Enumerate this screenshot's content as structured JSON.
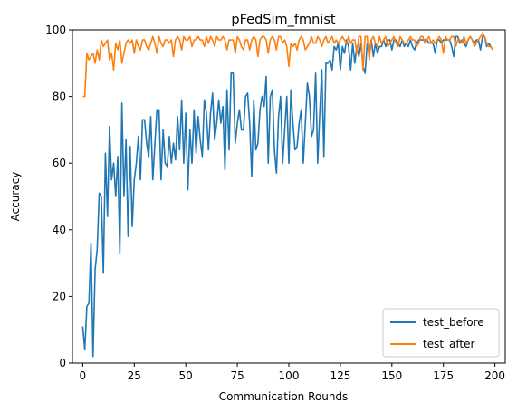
{
  "chart_data": {
    "type": "line",
    "title": "pFedSim_fmnist",
    "xlabel": "Communication Rounds",
    "ylabel": "Accuracy",
    "xlim": [
      -5,
      205
    ],
    "ylim": [
      0,
      100
    ],
    "xticks": [
      0,
      25,
      50,
      75,
      100,
      125,
      150,
      175,
      200
    ],
    "yticks": [
      0,
      20,
      40,
      60,
      80,
      100
    ],
    "grid": false,
    "legend_position": "lower-right",
    "series": [
      {
        "name": "test_before",
        "color": "#1f77b4",
        "values": [
          11,
          4,
          17,
          18,
          36,
          2,
          28,
          34,
          51,
          50,
          27,
          63,
          44,
          71,
          55,
          60,
          50,
          62,
          33,
          78,
          50,
          67,
          38,
          65,
          41,
          55,
          60,
          68,
          55,
          73,
          73,
          66,
          62,
          74,
          55,
          66,
          76,
          76,
          55,
          70,
          60,
          59,
          68,
          60,
          66,
          61,
          74,
          64,
          79,
          60,
          75,
          52,
          70,
          60,
          76,
          63,
          74,
          67,
          62,
          79,
          75,
          64,
          75,
          81,
          67,
          72,
          79,
          72,
          77,
          58,
          82,
          64,
          87,
          87,
          66,
          72,
          76,
          70,
          70,
          80,
          81,
          72,
          56,
          79,
          64,
          66,
          76,
          80,
          77,
          86,
          60,
          80,
          82,
          64,
          57,
          74,
          80,
          60,
          70,
          80,
          60,
          82,
          72,
          64,
          65,
          72,
          76,
          60,
          72,
          84,
          80,
          68,
          70,
          87,
          60,
          75,
          88,
          62,
          90,
          90,
          91,
          88,
          95,
          94,
          96,
          88,
          95,
          93,
          97,
          95,
          88,
          96,
          90,
          95,
          92,
          96,
          89,
          87,
          96,
          93,
          97,
          92,
          96,
          93,
          95,
          95,
          97,
          95,
          97,
          97,
          94,
          97,
          97,
          96,
          95,
          97,
          95,
          96,
          95,
          97,
          95,
          94,
          96,
          97,
          97,
          97,
          97,
          97,
          96,
          96,
          96,
          93,
          97,
          97,
          96,
          97,
          97,
          97,
          97,
          95,
          92,
          98,
          98,
          96,
          97,
          96,
          95,
          97,
          98,
          97,
          96,
          97,
          97,
          94,
          98,
          98,
          95,
          96,
          95,
          94
        ]
      },
      {
        "name": "test_after",
        "color": "#ff7f0e",
        "values": [
          80,
          80,
          93,
          91,
          92,
          93,
          90,
          94,
          91,
          97,
          95,
          96,
          97,
          91,
          93,
          88,
          96,
          94,
          97,
          90,
          93,
          96,
          97,
          96,
          97,
          93,
          97,
          95,
          94,
          97,
          97,
          95,
          94,
          96,
          98,
          96,
          93,
          98,
          96,
          95,
          97,
          97,
          96,
          97,
          92,
          97,
          98,
          97,
          94,
          98,
          97,
          97,
          98,
          95,
          97,
          97,
          98,
          97,
          97,
          95,
          98,
          96,
          98,
          97,
          95,
          98,
          97,
          97,
          98,
          97,
          94,
          97,
          97,
          97,
          93,
          98,
          97,
          95,
          94,
          97,
          97,
          94,
          97,
          98,
          97,
          92,
          97,
          98,
          98,
          97,
          93,
          97,
          98,
          97,
          94,
          98,
          98,
          96,
          97,
          95,
          89,
          96,
          95,
          96,
          94,
          97,
          98,
          97,
          94,
          95,
          96,
          98,
          96,
          96,
          98,
          97,
          95,
          97,
          98,
          96,
          97,
          98,
          96,
          97,
          96,
          97,
          98,
          97,
          96,
          98,
          96,
          97,
          97,
          93,
          98,
          98,
          88,
          98,
          98,
          91,
          97,
          98,
          96,
          95,
          98,
          96,
          97,
          98,
          95,
          96,
          97,
          98,
          96,
          95,
          98,
          97,
          96,
          96,
          97,
          98,
          97,
          97,
          95,
          96,
          98,
          98,
          96,
          97,
          98,
          96,
          97,
          96,
          97,
          98,
          97,
          93,
          98,
          97,
          97,
          98,
          98,
          95,
          97,
          97,
          96,
          98,
          96,
          97,
          98,
          97,
          95,
          96,
          97,
          98,
          99,
          98,
          96,
          95,
          95,
          94
        ]
      }
    ]
  }
}
